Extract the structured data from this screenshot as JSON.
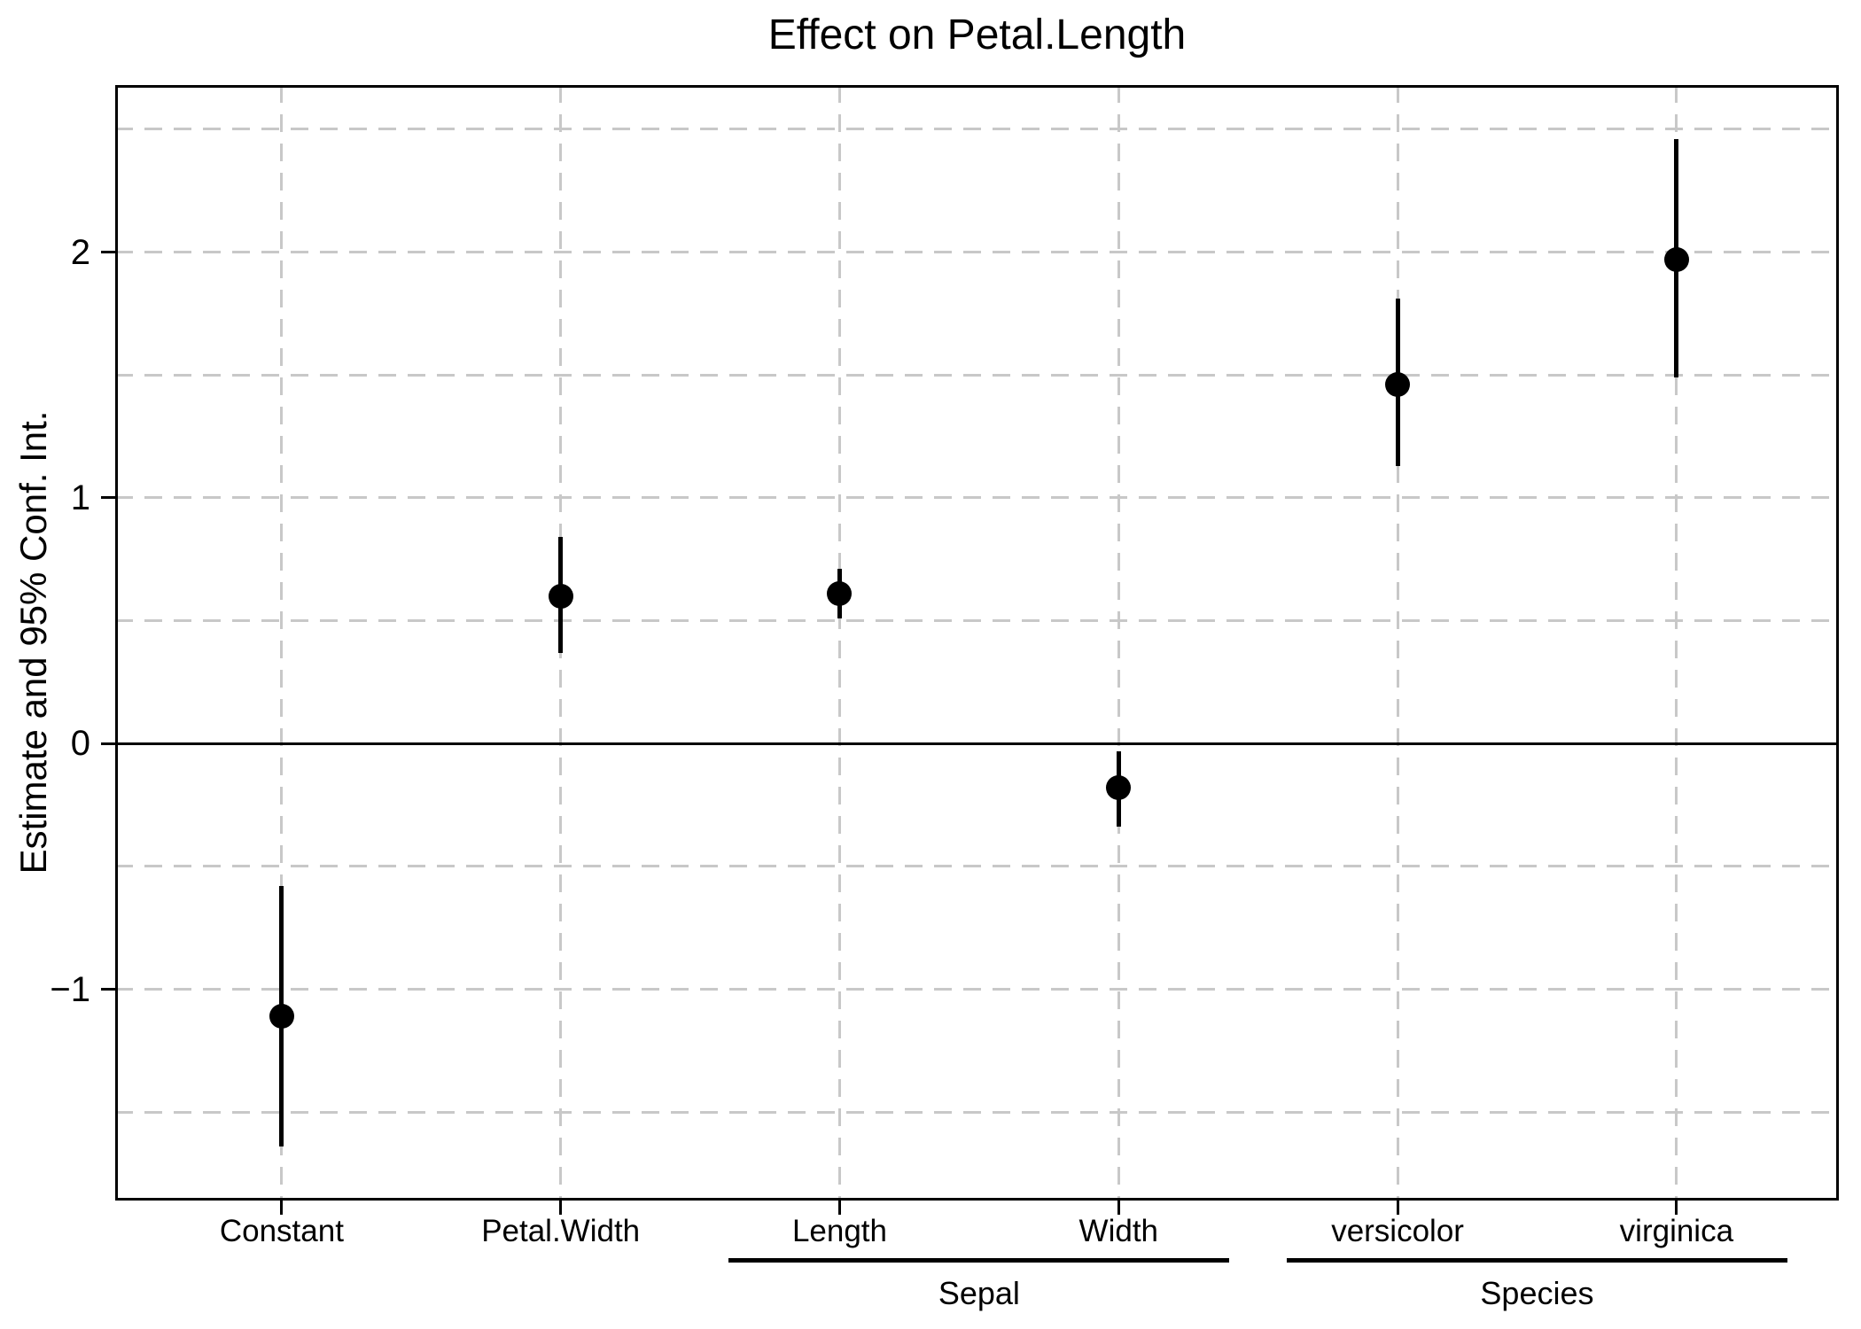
{
  "colors": {
    "background": "#ffffff",
    "axis": "#000000",
    "grid": "#c8c8c8",
    "point": "#000000",
    "text": "#000000"
  },
  "chart_data": {
    "type": "scatter",
    "variant": "coefficient-dot-whisker-plot",
    "title": "Effect on Petal.Length",
    "ylabel": "Estimate and 95% Conf. Int.",
    "xlabel": "",
    "ylim": [
      -1.86,
      2.68
    ],
    "yticks": [
      {
        "value": -1,
        "label": "−1"
      },
      {
        "value": 0,
        "label": "0"
      },
      {
        "value": 1,
        "label": "1"
      },
      {
        "value": 2,
        "label": "2"
      }
    ],
    "gridlines_y": [
      -1.5,
      -1,
      -0.5,
      0.5,
      1,
      1.5,
      2,
      2.5
    ],
    "zero_line_y": 0,
    "grid": "dashed",
    "legend": "none",
    "categories": [
      "Constant",
      "Petal.Width",
      "Length",
      "Width",
      "versicolor",
      "virginica"
    ],
    "groups": [
      {
        "label": "Sepal",
        "span": [
          "Length",
          "Width"
        ]
      },
      {
        "label": "Species",
        "span": [
          "versicolor",
          "virginica"
        ]
      }
    ],
    "points": [
      {
        "label": "Constant",
        "estimate": -1.11,
        "ci_low": -1.64,
        "ci_high": -0.58
      },
      {
        "label": "Petal.Width",
        "estimate": 0.6,
        "ci_low": 0.37,
        "ci_high": 0.84
      },
      {
        "label": "Length",
        "estimate": 0.61,
        "ci_low": 0.51,
        "ci_high": 0.71
      },
      {
        "label": "Width",
        "estimate": -0.18,
        "ci_low": -0.34,
        "ci_high": -0.03
      },
      {
        "label": "versicolor",
        "estimate": 1.46,
        "ci_low": 1.13,
        "ci_high": 1.81
      },
      {
        "label": "virginica",
        "estimate": 1.97,
        "ci_low": 1.49,
        "ci_high": 2.46
      }
    ]
  }
}
